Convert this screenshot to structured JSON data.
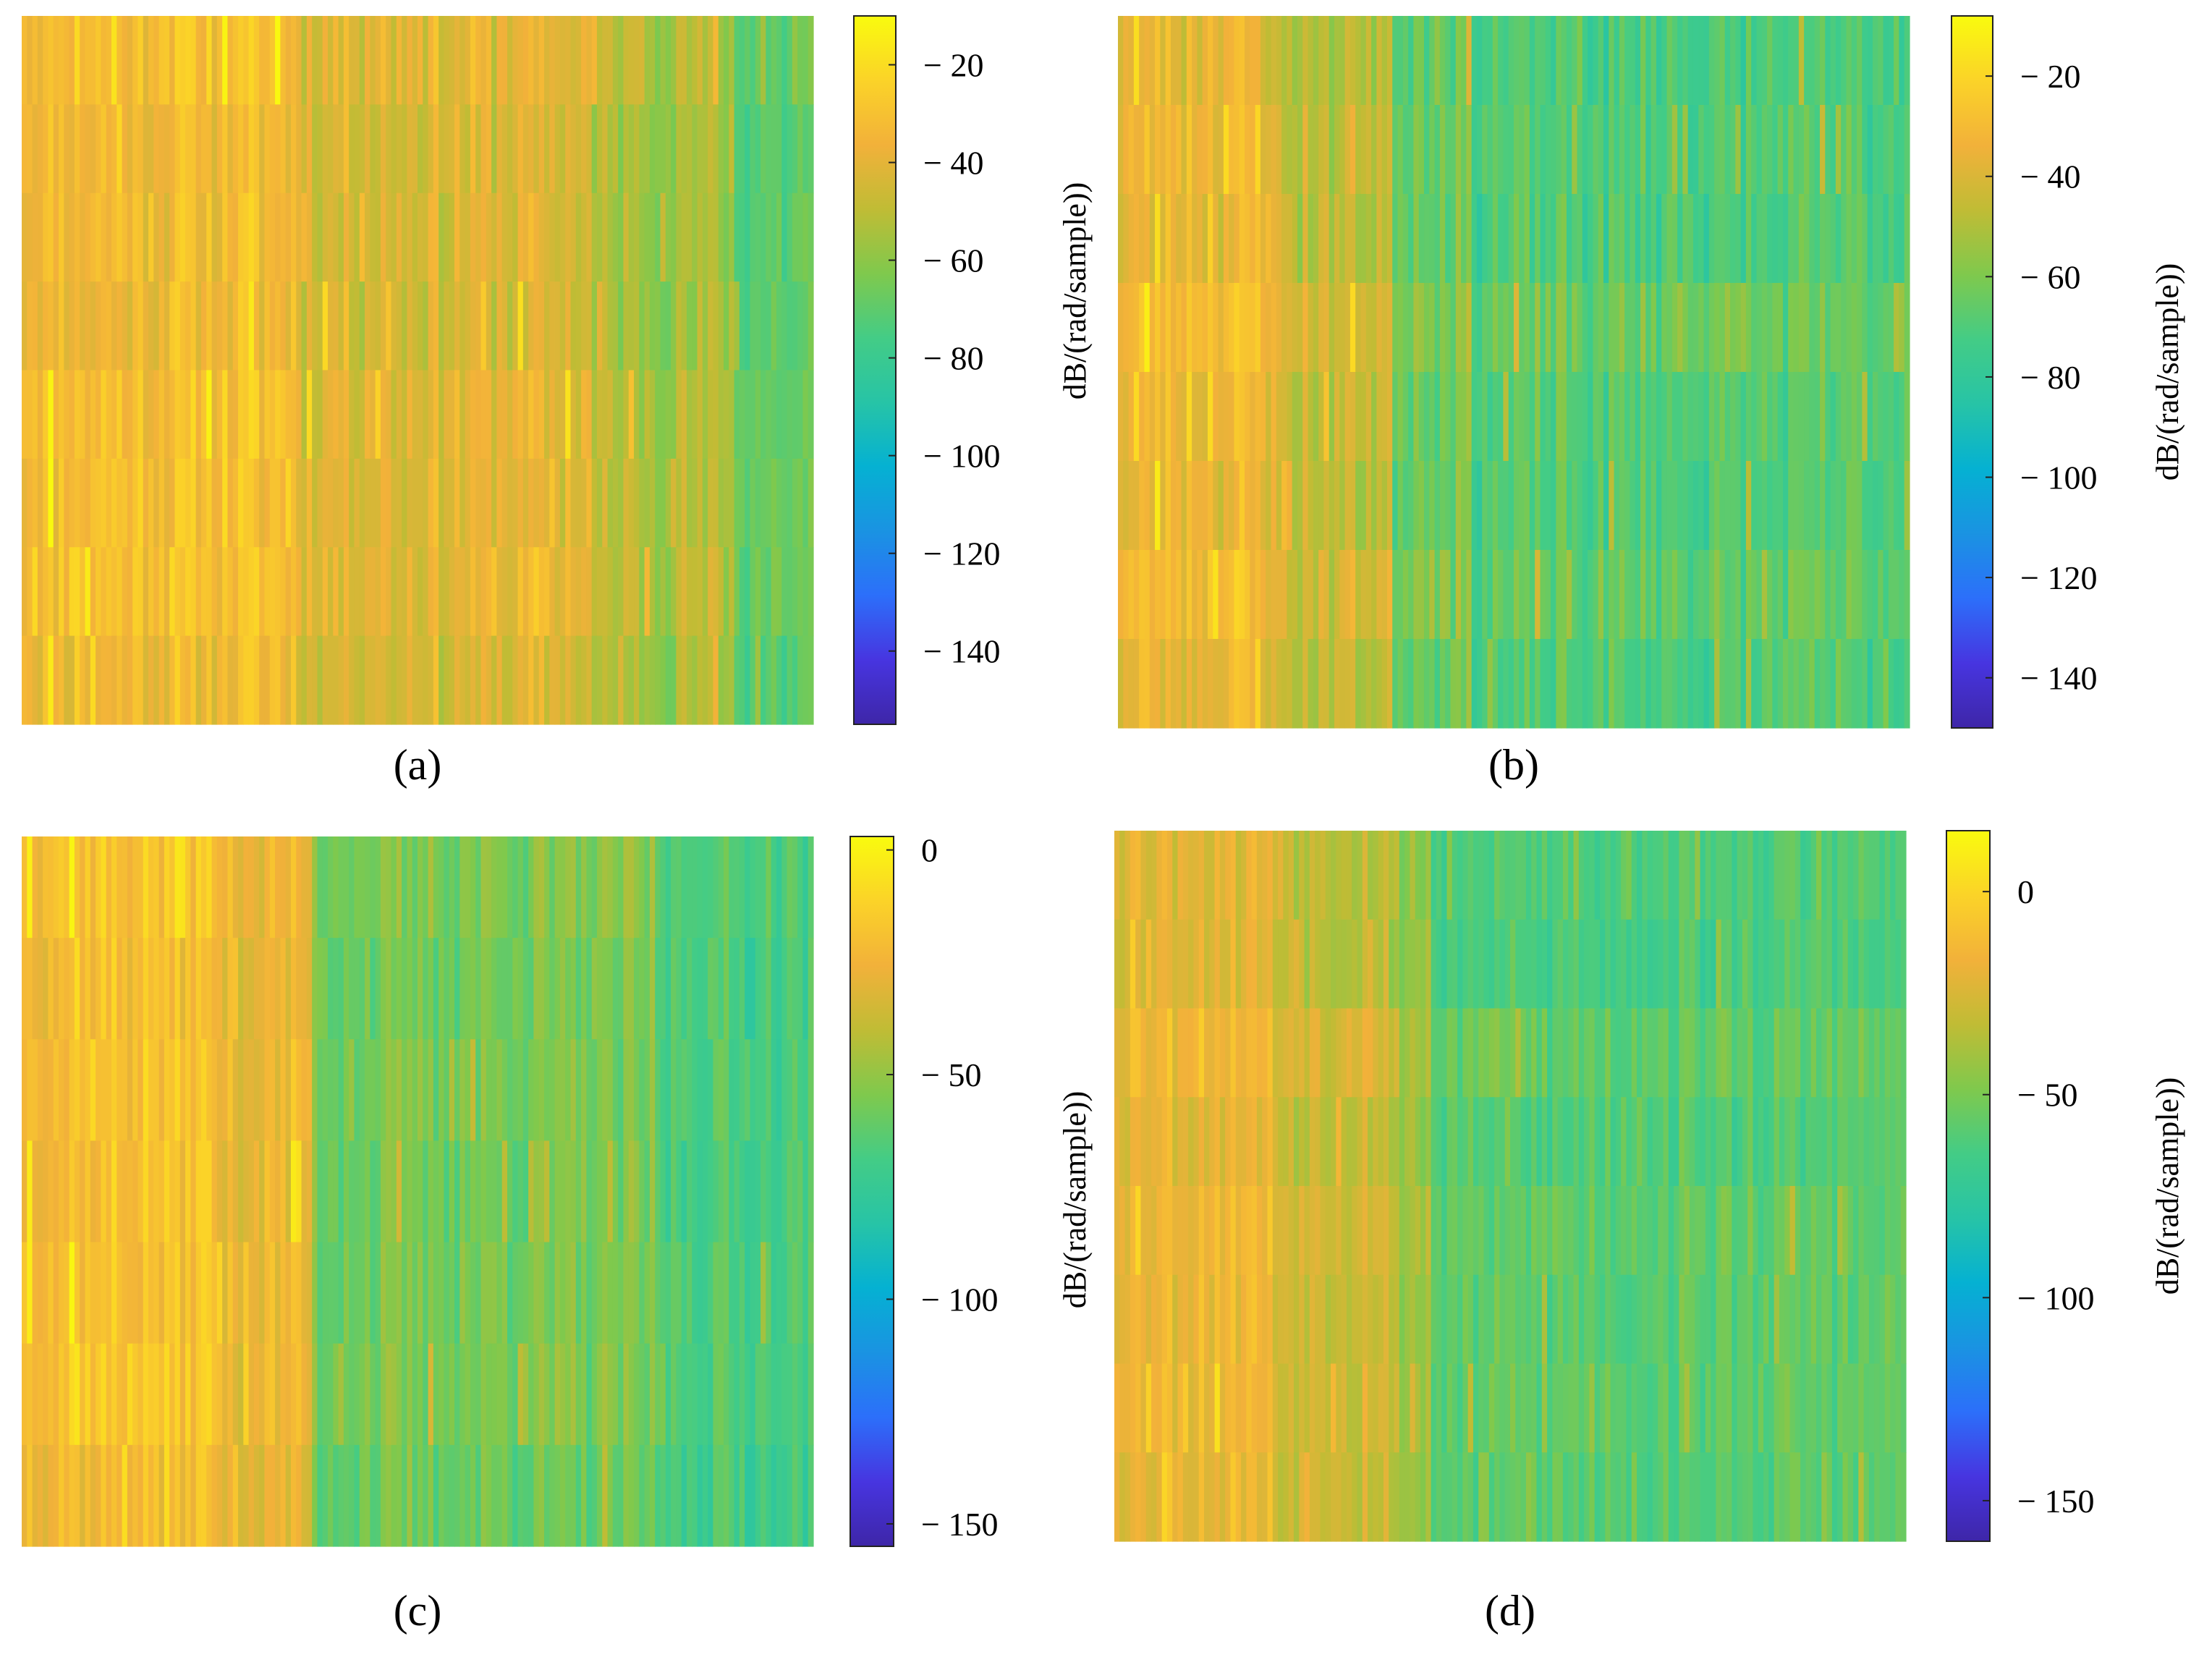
{
  "figure": {
    "panels": [
      "(a)",
      "(b)",
      "(c)",
      "(d)"
    ]
  },
  "colormap": {
    "name": "parula",
    "stops": [
      "#3e26a8",
      "#4735e0",
      "#2c6ffa",
      "#1a93e2",
      "#05b1d2",
      "#27c4a6",
      "#43cc86",
      "#7fc94d",
      "#c0bc35",
      "#f2b13a",
      "#fbd328",
      "#f9fb0e"
    ]
  },
  "chart_data": [
    {
      "type": "heatmap",
      "panel_label": "(a)",
      "description": "spectrogram-like heatmap, 8 horizontal bands of vertical streaks",
      "rows": 8,
      "levels_db": {
        "bands": [
          {
            "start": 0.0,
            "end": 0.35,
            "base": -33
          },
          {
            "start": 0.35,
            "end": 0.72,
            "base": -42
          },
          {
            "start": 0.72,
            "end": 0.9,
            "base": -54
          },
          {
            "start": 0.9,
            "end": 1.0,
            "base": -70
          }
        ],
        "bright_column_fraction": 0.35
      },
      "colorbar": {
        "range": [
          -155,
          -10
        ],
        "ticks": [
          -20,
          -40,
          -60,
          -80,
          -100,
          -120,
          -140
        ],
        "tick_labels": [
          "− 20",
          "− 40",
          "− 60",
          "− 80",
          "− 100",
          "− 120",
          "− 140"
        ],
        "label": ""
      },
      "seed": 11
    },
    {
      "type": "heatmap",
      "panel_label": "(b)",
      "description": "spectrogram-like heatmap, bright region on the left, green-cyan on the right",
      "rows": 8,
      "levels_db": {
        "bands": [
          {
            "start": 0.0,
            "end": 0.2,
            "base": -32
          },
          {
            "start": 0.2,
            "end": 0.35,
            "base": -44
          },
          {
            "start": 0.35,
            "end": 0.45,
            "base": -60
          },
          {
            "start": 0.45,
            "end": 1.0,
            "base": -68
          }
        ],
        "bright_column_fraction": 0.35
      },
      "colorbar": {
        "range": [
          -150,
          -8
        ],
        "ticks": [
          -20,
          -40,
          -60,
          -80,
          -100,
          -120,
          -140
        ],
        "tick_labels": [
          "− 20",
          "− 40",
          "− 60",
          "− 80",
          "− 100",
          "− 120",
          "− 140"
        ],
        "label": "dB/(rad/sample))"
      },
      "seed": 23
    },
    {
      "type": "heatmap",
      "panel_label": "(c)",
      "description": "spectrogram-like heatmap, warm on left third, green to cyan on the right",
      "rows": 7,
      "levels_db": {
        "bands": [
          {
            "start": 0.0,
            "end": 0.25,
            "base": -20
          },
          {
            "start": 0.25,
            "end": 0.37,
            "base": -28
          },
          {
            "start": 0.37,
            "end": 0.8,
            "base": -58
          },
          {
            "start": 0.8,
            "end": 1.0,
            "base": -68
          }
        ],
        "bright_column_fraction": 0.37
      },
      "colorbar": {
        "range": [
          -155,
          3
        ],
        "ticks": [
          0,
          -50,
          -100,
          -150
        ],
        "tick_labels": [
          "0",
          "− 50",
          "− 100",
          "− 150"
        ],
        "label": ""
      },
      "seed": 37
    },
    {
      "type": "heatmap",
      "panel_label": "(d)",
      "description": "spectrogram-like heatmap, warm left third, green/cyan right",
      "rows": 8,
      "levels_db": {
        "bands": [
          {
            "start": 0.0,
            "end": 0.2,
            "base": -18
          },
          {
            "start": 0.2,
            "end": 0.35,
            "base": -28
          },
          {
            "start": 0.35,
            "end": 0.4,
            "base": -40
          },
          {
            "start": 0.4,
            "end": 1.0,
            "base": -60
          }
        ],
        "bright_column_fraction": 0.35
      },
      "colorbar": {
        "range": [
          -160,
          15
        ],
        "ticks": [
          0,
          -50,
          -100,
          -150
        ],
        "tick_labels": [
          "0",
          "− 50",
          "− 100",
          "− 150"
        ],
        "label": "dB/(rad/sample))"
      },
      "seed": 53
    }
  ],
  "side_labels": {
    "between_ab": "dB/(rad/sample))",
    "between_cd": "dB/(rad/sample))"
  }
}
